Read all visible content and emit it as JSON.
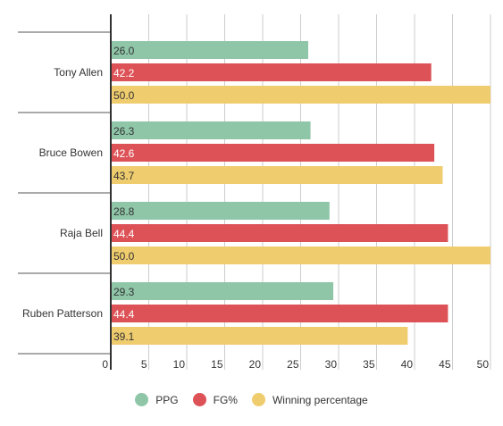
{
  "chart_data": {
    "type": "bar",
    "orientation": "horizontal",
    "categories": [
      "Tony Allen",
      "Bruce Bowen",
      "Raja Bell",
      "Ruben Patterson"
    ],
    "series": [
      {
        "name": "PPG",
        "color": "#8fc6a8",
        "label_color": "#333333",
        "values": [
          26.0,
          26.3,
          28.8,
          29.3
        ]
      },
      {
        "name": "FG%",
        "color": "#dd5257",
        "label_color": "#ffffff",
        "values": [
          42.2,
          42.6,
          44.4,
          44.4
        ]
      },
      {
        "name": "Winning percentage",
        "color": "#efcc6e",
        "label_color": "#333333",
        "values": [
          50.0,
          43.7,
          50.0,
          39.1
        ]
      }
    ],
    "value_labels": [
      [
        "26.0",
        "26.3",
        "28.8",
        "29.3"
      ],
      [
        "42.2",
        "42.6",
        "44.4",
        "44.4"
      ],
      [
        "50.0",
        "43.7",
        "50.0",
        "39.1"
      ]
    ],
    "xlim": [
      0,
      50
    ],
    "xticks": [
      0,
      5,
      10,
      15,
      20,
      25,
      30,
      35,
      40,
      45,
      50
    ],
    "grid": true,
    "legend_position": "bottom"
  }
}
